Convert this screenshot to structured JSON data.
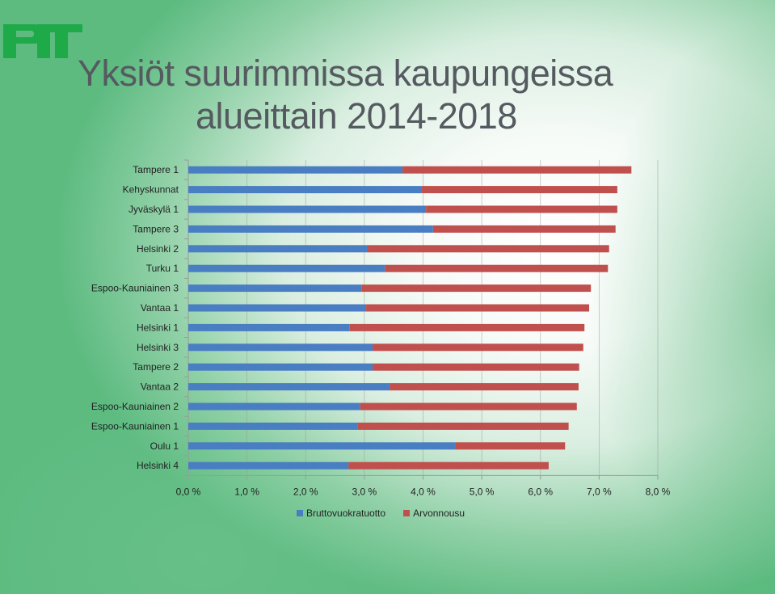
{
  "logo": {
    "name": "PTT logo",
    "color": "#1faa4a"
  },
  "title": {
    "line1": "Yksiöt suurimmissa kaupungeissa",
    "line2": "alueittain 2014-2018"
  },
  "colors": {
    "series1": "#4a7ec3",
    "series2": "#c0504d",
    "axis": "#9a9a9a"
  },
  "legend": {
    "series1": "Bruttovuokratuotto",
    "series2": "Arvonnousu"
  },
  "chart_data": {
    "type": "bar",
    "orientation": "horizontal",
    "stacked": true,
    "categories": [
      "Tampere 1",
      "Kehyskunnat",
      "Jyväskylä 1",
      "Tampere 3",
      "Helsinki 2",
      "Turku 1",
      "Espoo-Kauniainen 3",
      "Vantaa 1",
      "Helsinki 1",
      "Helsinki 3",
      "Tampere 2",
      "Vantaa 2",
      "Espoo-Kauniainen 2",
      "Espoo-Kauniainen 1",
      "Oulu 1",
      "Helsinki 4"
    ],
    "series": [
      {
        "name": "Bruttovuokratuotto",
        "values": [
          3.65,
          3.98,
          4.05,
          4.17,
          3.05,
          3.35,
          2.95,
          3.03,
          2.75,
          3.14,
          3.14,
          3.43,
          2.93,
          2.88,
          4.55,
          2.73
        ]
      },
      {
        "name": "Arvonnousu",
        "values": [
          3.9,
          3.33,
          3.26,
          3.11,
          4.12,
          3.8,
          3.91,
          3.8,
          4.0,
          3.59,
          3.52,
          3.22,
          3.69,
          3.6,
          1.87,
          3.41
        ]
      }
    ],
    "xticks": [
      "0,0 %",
      "1,0 %",
      "2,0 %",
      "3,0 %",
      "4,0 %",
      "5,0 %",
      "6,0 %",
      "7,0 %",
      "8,0 %"
    ],
    "xlim": [
      0,
      8
    ],
    "grid": "vertical-major",
    "legend_position": "bottom"
  }
}
